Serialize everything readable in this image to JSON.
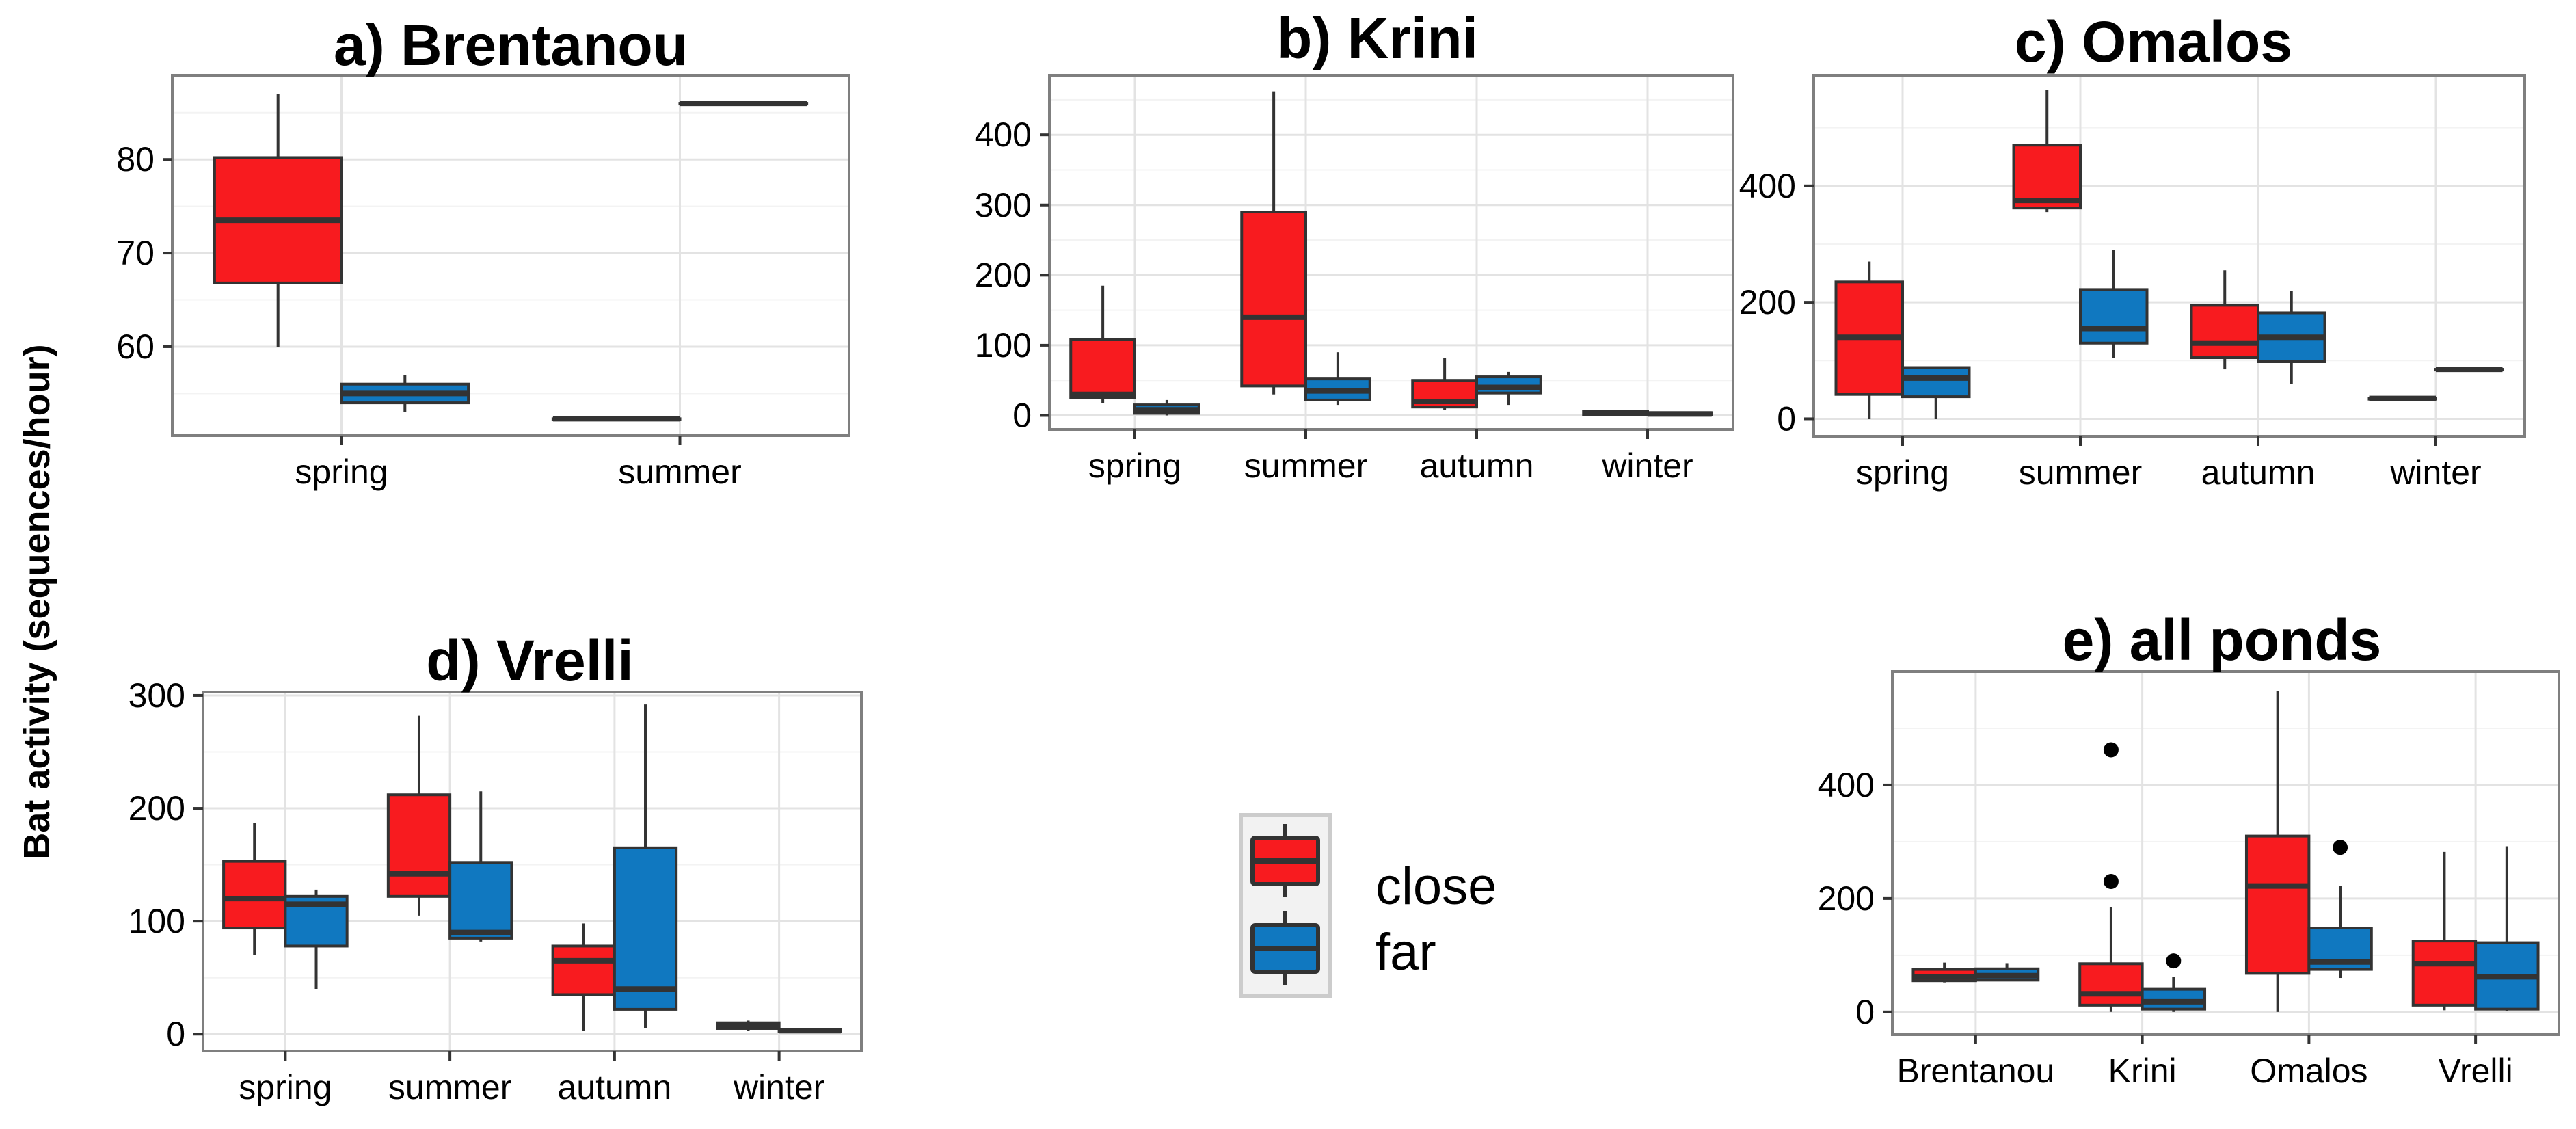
{
  "y_axis_label": "Bat activity (sequences/hour)",
  "colors": {
    "close": "#f81b1f",
    "far": "#1078c0",
    "panel_border": "#7f7f7f",
    "grid_major": "#e3e3e3",
    "grid_minor": "#f3f3f3",
    "outline": "#333333"
  },
  "chart_data": [
    {
      "type": "box",
      "title": "a) Brentanou",
      "xlabel": "",
      "ylabel": "",
      "categories": [
        "spring",
        "summer"
      ],
      "y_ticks": [
        60,
        70,
        80
      ],
      "ylim": [
        50.5,
        89
      ],
      "grid": true,
      "series": [
        {
          "name": "close",
          "boxes": [
            {
              "min": 60,
              "q1": 66.8,
              "median": 73.5,
              "q3": 80.2,
              "max": 87
            },
            {
              "min": 52.3,
              "q1": 52.3,
              "median": 52.3,
              "q3": 52.3,
              "max": 52.3
            }
          ]
        },
        {
          "name": "far",
          "boxes": [
            {
              "min": 53,
              "q1": 54,
              "median": 55,
              "q3": 56,
              "max": 57
            },
            {
              "min": 86,
              "q1": 86,
              "median": 86,
              "q3": 86,
              "max": 86
            }
          ]
        }
      ]
    },
    {
      "type": "box",
      "title": "b) Krini",
      "xlabel": "",
      "ylabel": "",
      "categories": [
        "spring",
        "summer",
        "autumn",
        "winter"
      ],
      "y_ticks": [
        0,
        100,
        200,
        300,
        400
      ],
      "ylim": [
        -20,
        485
      ],
      "grid": true,
      "series": [
        {
          "name": "close",
          "boxes": [
            {
              "min": 18,
              "q1": 25,
              "median": 30,
              "q3": 108,
              "max": 185
            },
            {
              "min": 30,
              "q1": 42,
              "median": 140,
              "q3": 290,
              "max": 462
            },
            {
              "min": 8,
              "q1": 12,
              "median": 20,
              "q3": 50,
              "max": 82
            },
            {
              "min": 0,
              "q1": 1,
              "median": 3,
              "q3": 6,
              "max": 8
            }
          ]
        },
        {
          "name": "far",
          "boxes": [
            {
              "min": 0,
              "q1": 3,
              "median": 8,
              "q3": 15,
              "max": 22
            },
            {
              "min": 15,
              "q1": 22,
              "median": 35,
              "q3": 52,
              "max": 90
            },
            {
              "min": 15,
              "q1": 32,
              "median": 40,
              "q3": 55,
              "max": 62
            },
            {
              "min": 0,
              "q1": 1,
              "median": 2,
              "q3": 4,
              "max": 5
            }
          ]
        }
      ]
    },
    {
      "type": "box",
      "title": "c) Omalos",
      "xlabel": "",
      "ylabel": "",
      "categories": [
        "spring",
        "summer",
        "autumn",
        "winter"
      ],
      "y_ticks": [
        0,
        200,
        400
      ],
      "ylim": [
        -30,
        590
      ],
      "grid": true,
      "series": [
        {
          "name": "close",
          "boxes": [
            {
              "min": 0,
              "q1": 42,
              "median": 140,
              "q3": 235,
              "max": 270
            },
            {
              "min": 355,
              "q1": 362,
              "median": 375,
              "q3": 470,
              "max": 565
            },
            {
              "min": 85,
              "q1": 105,
              "median": 130,
              "q3": 195,
              "max": 255
            },
            {
              "min": 35,
              "q1": 35,
              "median": 35,
              "q3": 35,
              "max": 35
            }
          ]
        },
        {
          "name": "far",
          "boxes": [
            {
              "min": 0,
              "q1": 38,
              "median": 70,
              "q3": 88,
              "max": 88
            },
            {
              "min": 105,
              "q1": 130,
              "median": 155,
              "q3": 222,
              "max": 290
            },
            {
              "min": 60,
              "q1": 98,
              "median": 140,
              "q3": 182,
              "max": 220
            },
            {
              "min": 85,
              "q1": 85,
              "median": 85,
              "q3": 85,
              "max": 85
            }
          ]
        }
      ]
    },
    {
      "type": "box",
      "title": "d) Vrelli",
      "xlabel": "",
      "ylabel": "",
      "categories": [
        "spring",
        "summer",
        "autumn",
        "winter"
      ],
      "y_ticks": [
        0,
        100,
        200,
        300
      ],
      "ylim": [
        -15,
        303
      ],
      "grid": true,
      "series": [
        {
          "name": "close",
          "boxes": [
            {
              "min": 70,
              "q1": 94,
              "median": 120,
              "q3": 153,
              "max": 187
            },
            {
              "min": 105,
              "q1": 122,
              "median": 142,
              "q3": 212,
              "max": 282
            },
            {
              "min": 3,
              "q1": 35,
              "median": 65,
              "q3": 78,
              "max": 98
            },
            {
              "min": 3,
              "q1": 5,
              "median": 8,
              "q3": 10,
              "max": 12
            }
          ]
        },
        {
          "name": "far",
          "boxes": [
            {
              "min": 40,
              "q1": 78,
              "median": 115,
              "q3": 122,
              "max": 128
            },
            {
              "min": 82,
              "q1": 85,
              "median": 90,
              "q3": 152,
              "max": 215
            },
            {
              "min": 5,
              "q1": 22,
              "median": 40,
              "q3": 165,
              "max": 292
            },
            {
              "min": 1,
              "q1": 2,
              "median": 3,
              "q3": 4,
              "max": 5
            }
          ]
        }
      ]
    },
    {
      "type": "box",
      "title": "e) all ponds",
      "xlabel": "",
      "ylabel": "",
      "categories": [
        "Brentanou",
        "Krini",
        "Omalos",
        "Vrelli"
      ],
      "y_ticks": [
        0,
        200,
        400
      ],
      "ylim": [
        -40,
        600
      ],
      "grid": true,
      "series": [
        {
          "name": "close",
          "boxes": [
            {
              "min": 52,
              "q1": 55,
              "median": 62,
              "q3": 75,
              "max": 87,
              "outliers": []
            },
            {
              "min": 0,
              "q1": 12,
              "median": 32,
              "q3": 85,
              "max": 185,
              "outliers": [
                230,
                462
              ]
            },
            {
              "min": 0,
              "q1": 68,
              "median": 222,
              "q3": 310,
              "max": 565,
              "outliers": []
            },
            {
              "min": 3,
              "q1": 12,
              "median": 85,
              "q3": 125,
              "max": 282,
              "outliers": []
            }
          ]
        },
        {
          "name": "far",
          "boxes": [
            {
              "min": 54,
              "q1": 56,
              "median": 64,
              "q3": 76,
              "max": 86,
              "outliers": []
            },
            {
              "min": 0,
              "q1": 5,
              "median": 18,
              "q3": 40,
              "max": 62,
              "outliers": [
                90
              ]
            },
            {
              "min": 60,
              "q1": 75,
              "median": 88,
              "q3": 148,
              "max": 222,
              "outliers": [
                290
              ]
            },
            {
              "min": 1,
              "q1": 5,
              "median": 62,
              "q3": 122,
              "max": 292,
              "outliers": []
            }
          ]
        }
      ]
    }
  ],
  "legend": {
    "position": "center",
    "entries": [
      "close",
      "far"
    ]
  }
}
